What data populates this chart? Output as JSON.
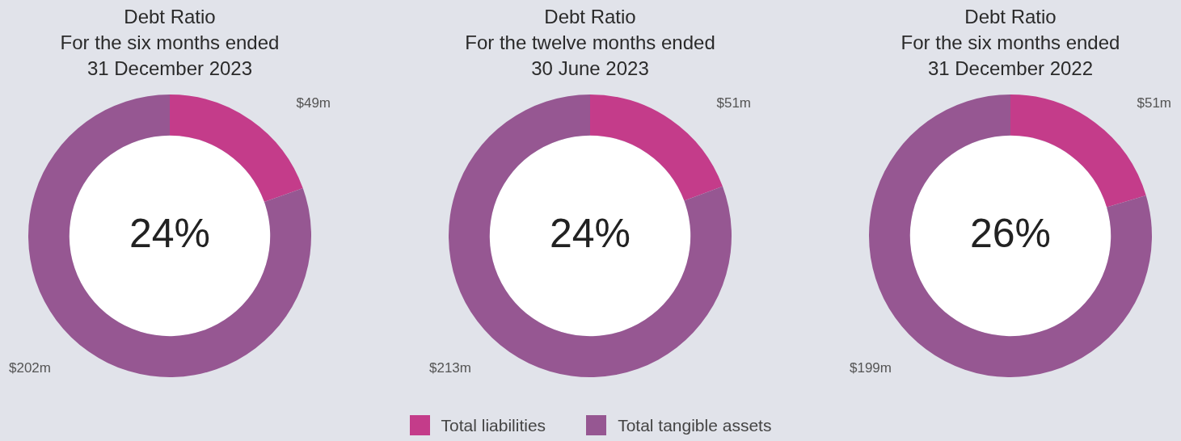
{
  "chart_data": [
    {
      "type": "donut",
      "title": "Debt Ratio\nFor the six months ended\n31 December 2023",
      "categories": [
        "Total liabilities",
        "Total tangible assets"
      ],
      "values": [
        49,
        202
      ],
      "colors": [
        "#c43c8a",
        "#965792"
      ],
      "value_labels": [
        "$49m",
        "$202m"
      ],
      "annotations": [
        "24%"
      ],
      "legend": "bottom"
    },
    {
      "type": "donut",
      "title": "Debt Ratio\nFor the twelve months ended\n30 June 2023",
      "categories": [
        null,
        null
      ],
      "values": [
        51,
        213
      ],
      "colors": [
        "#c43c8a",
        "#965792"
      ],
      "value_labels": [
        "$51m",
        "$213m"
      ],
      "annotations": [
        "24%"
      ]
    },
    {
      "type": "donut",
      "title": "Debt Ratio\nFor the six months ended\n31 December 2022",
      "categories": [
        null,
        null
      ],
      "values": [
        51,
        199
      ],
      "colors": [
        "#c43c8a",
        "#965792"
      ],
      "value_labels": [
        "$51m",
        "$199m"
      ],
      "annotations": [
        "26%"
      ]
    }
  ]
}
